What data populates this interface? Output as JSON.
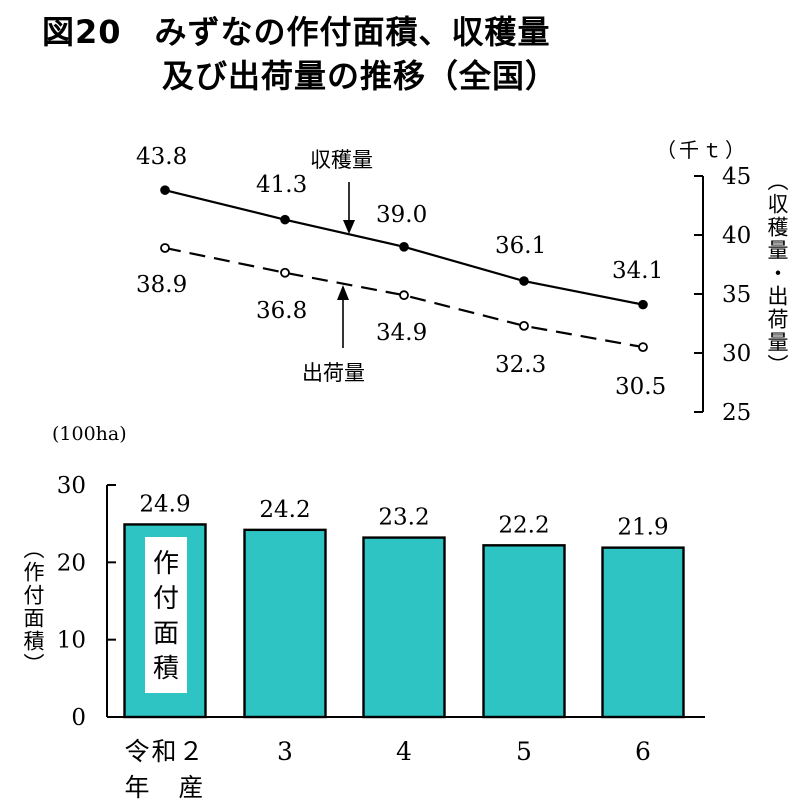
{
  "title": {
    "line1": "図20　みずなの作付面積、収穫量",
    "line2": "及び出荷量の推移（全国）"
  },
  "chart_data": [
    {
      "type": "line",
      "categories": [
        "令和２年産",
        "3",
        "4",
        "5",
        "6"
      ],
      "series": [
        {
          "name": "収穫量",
          "values": [
            43.8,
            41.3,
            39.0,
            36.1,
            34.1
          ],
          "labels": [
            "43.8",
            "41.3",
            "39.0",
            "36.1",
            "34.1"
          ],
          "marker": "filled",
          "style": "solid"
        },
        {
          "name": "出荷量",
          "values": [
            38.9,
            36.8,
            34.9,
            32.3,
            30.5
          ],
          "labels": [
            "38.9",
            "36.8",
            "34.9",
            "32.3",
            "30.5"
          ],
          "marker": "open",
          "style": "dashed"
        }
      ],
      "y_axis": {
        "side": "right",
        "ylim": [
          25,
          45
        ],
        "ticks": [
          "45",
          "40",
          "35",
          "30",
          "25"
        ],
        "unit": "（千ｔ）",
        "label": "（収穫量・出荷量）"
      },
      "annotations": {
        "harvest": "収穫量",
        "shipment": "出荷量"
      }
    },
    {
      "type": "bar",
      "categories": [
        "令和２年産",
        "3",
        "4",
        "5",
        "6"
      ],
      "x_tick_labels": {
        "first_line1": "令和２",
        "first_line2": "年　産",
        "others": [
          "3",
          "4",
          "5",
          "6"
        ]
      },
      "values": [
        24.9,
        24.2,
        23.2,
        22.2,
        21.9
      ],
      "labels": [
        "24.9",
        "24.2",
        "23.2",
        "22.2",
        "21.9"
      ],
      "series_name": "作付面積",
      "y_axis": {
        "side": "left",
        "ylim": [
          0,
          30
        ],
        "ticks": [
          "30",
          "20",
          "10",
          "0"
        ],
        "unit": "(100ha)",
        "label": "（作付面積）"
      },
      "bar_color": "#2ec4c4",
      "bar_edge": "#000000"
    }
  ]
}
